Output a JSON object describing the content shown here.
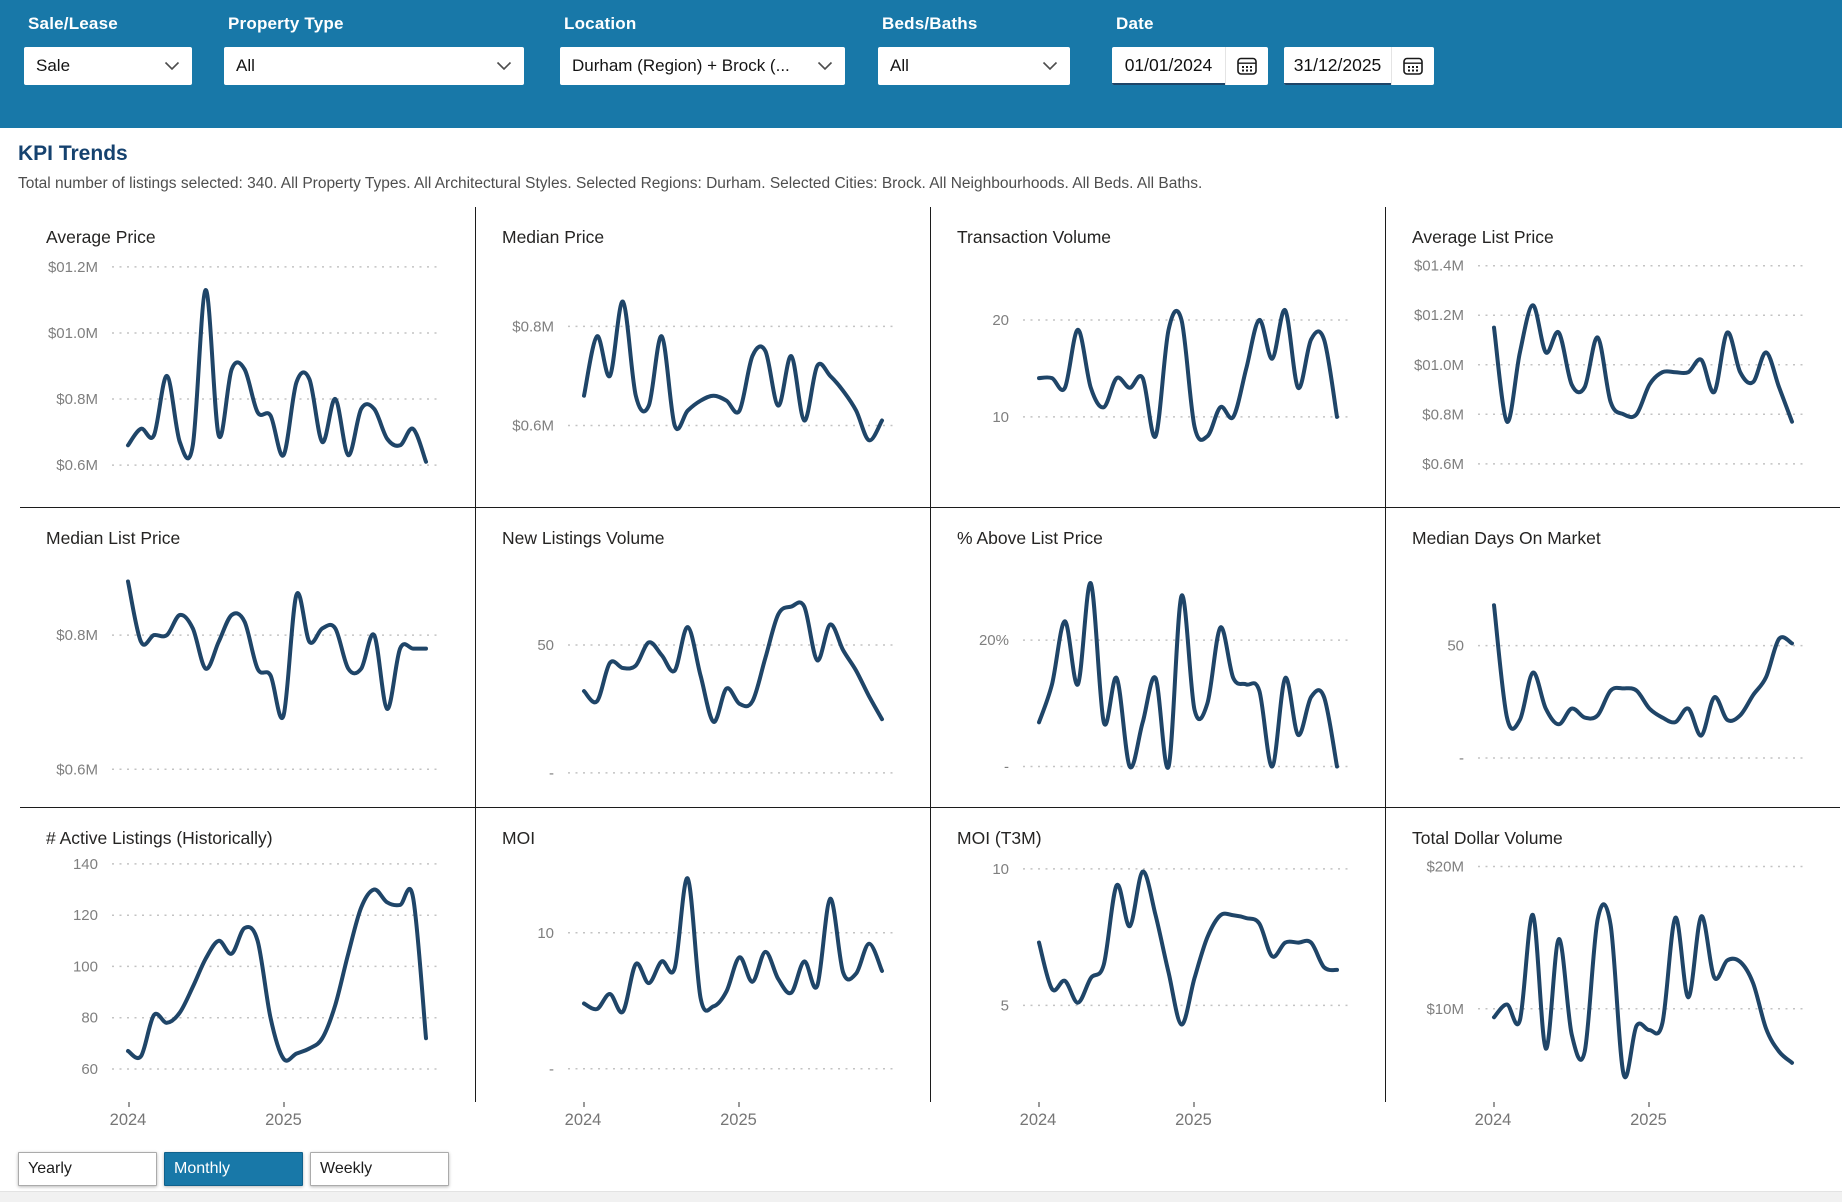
{
  "filters": {
    "sale_lease": {
      "label": "Sale/Lease",
      "value": "Sale"
    },
    "property_type": {
      "label": "Property Type",
      "value": "All"
    },
    "location": {
      "label": "Location",
      "value": "Durham (Region) + Brock (..."
    },
    "beds_baths": {
      "label": "Beds/Baths",
      "value": "All"
    },
    "date": {
      "label": "Date",
      "start": "01/01/2024",
      "end": "31/12/2025"
    }
  },
  "page": {
    "title": "KPI Trends",
    "subtitle": "Total number of listings selected: 340. All Property Types. All Architectural Styles. Selected Regions: Durham. Selected Cities: Brock. All Neighbourhoods. All Beds. All Baths."
  },
  "period_toggle": {
    "options": [
      "Yearly",
      "Monthly",
      "Weekly"
    ],
    "selected": "Monthly"
  },
  "colors": {
    "header_blue": "#1878a8",
    "line": "#1f4568",
    "title_navy": "#15426f"
  },
  "icons": {
    "dropdown": "chevron-down",
    "date": "calendar"
  },
  "chart_data": [
    {
      "slug": "avg-price",
      "title": "Average Price",
      "type": "line",
      "x_range": [
        "2024-01",
        "2025-12"
      ],
      "x_axis_labels": [
        "2024",
        "2025"
      ],
      "grid": "dotted",
      "values": [
        0.66,
        0.71,
        0.69,
        0.87,
        0.67,
        0.66,
        1.13,
        0.69,
        0.89,
        0.89,
        0.76,
        0.75,
        0.63,
        0.85,
        0.86,
        0.67,
        0.8,
        0.63,
        0.77,
        0.77,
        0.68,
        0.66,
        0.71,
        0.61
      ],
      "yticks": [
        {
          "label": "$01.2M",
          "value": 1.2
        },
        {
          "label": "$01.0M",
          "value": 1.0
        },
        {
          "label": "$0.8M",
          "value": 0.8
        },
        {
          "label": "$0.6M",
          "value": 0.6
        }
      ],
      "ylim": [
        0.57,
        1.23
      ]
    },
    {
      "slug": "median-price",
      "title": "Median Price",
      "type": "line",
      "x_range": [
        "2024-01",
        "2025-12"
      ],
      "x_axis_labels": [
        "2024",
        "2025"
      ],
      "grid": "dotted",
      "values": [
        0.66,
        0.78,
        0.7,
        0.85,
        0.66,
        0.64,
        0.78,
        0.6,
        0.63,
        0.65,
        0.66,
        0.65,
        0.63,
        0.74,
        0.75,
        0.64,
        0.74,
        0.61,
        0.72,
        0.7,
        0.67,
        0.63,
        0.57,
        0.61
      ],
      "yticks": [
        {
          "label": "$0.8M",
          "value": 0.8
        },
        {
          "label": "$0.6M",
          "value": 0.6
        }
      ],
      "ylim": [
        0.5,
        0.94
      ]
    },
    {
      "slug": "transaction-volume",
      "title": "Transaction Volume",
      "type": "line",
      "x_range": [
        "2024-01",
        "2025-12"
      ],
      "x_axis_labels": [
        "2024",
        "2025"
      ],
      "grid": "dotted",
      "values": [
        14,
        14,
        13,
        19,
        13,
        11,
        14,
        13,
        14,
        8,
        19,
        20,
        9,
        8,
        11,
        10,
        15,
        20,
        16,
        21,
        13,
        18,
        18,
        10
      ],
      "yticks": [
        {
          "label": "20",
          "value": 20
        },
        {
          "label": "10",
          "value": 10
        }
      ],
      "ylim": [
        4,
        26.5
      ]
    },
    {
      "slug": "avg-list-price",
      "title": "Average List Price",
      "type": "line",
      "x_range": [
        "2024-01",
        "2025-12"
      ],
      "x_axis_labels": [
        "2024",
        "2025"
      ],
      "grid": "dotted",
      "values": [
        1.15,
        0.77,
        1.05,
        1.24,
        1.05,
        1.13,
        0.92,
        0.91,
        1.11,
        0.85,
        0.8,
        0.8,
        0.92,
        0.97,
        0.97,
        0.97,
        1.02,
        0.89,
        1.13,
        0.97,
        0.93,
        1.05,
        0.91,
        0.77
      ],
      "yticks": [
        {
          "label": "$01.4M",
          "value": 1.4
        },
        {
          "label": "$01.2M",
          "value": 1.2
        },
        {
          "label": "$01.0M",
          "value": 1.0
        },
        {
          "label": "$0.8M",
          "value": 0.8
        },
        {
          "label": "$0.6M",
          "value": 0.6
        }
      ],
      "ylim": [
        0.555,
        1.435
      ]
    },
    {
      "slug": "median-list-price",
      "title": "Median List Price",
      "type": "line",
      "x_range": [
        "2024-01",
        "2025-12"
      ],
      "x_axis_labels": [
        "2024",
        "2025"
      ],
      "grid": "dotted",
      "values": [
        0.88,
        0.79,
        0.8,
        0.8,
        0.83,
        0.81,
        0.75,
        0.79,
        0.83,
        0.82,
        0.75,
        0.74,
        0.68,
        0.86,
        0.79,
        0.81,
        0.81,
        0.75,
        0.75,
        0.8,
        0.69,
        0.78,
        0.78,
        0.78
      ],
      "yticks": [
        {
          "label": "$0.8M",
          "value": 0.8
        },
        {
          "label": "$0.6M",
          "value": 0.6
        }
      ],
      "ylim": [
        0.59,
        0.915
      ]
    },
    {
      "slug": "new-listings-volume",
      "title": "New Listings Volume",
      "type": "line",
      "x_range": [
        "2024-01",
        "2025-12"
      ],
      "x_axis_labels": [
        "2024",
        "2025"
      ],
      "grid": "dotted",
      "values": [
        32,
        28,
        43,
        41,
        42,
        51,
        46,
        40,
        57,
        38,
        20,
        33,
        27,
        28,
        45,
        62,
        65,
        65,
        44,
        58,
        48,
        40,
        30,
        21
      ],
      "yticks": [
        {
          "label": "50",
          "value": 50
        },
        {
          "label": "-",
          "value": 0
        }
      ],
      "ylim": [
        -1.2,
        84
      ]
    },
    {
      "slug": "pct-above-list-price",
      "title": "% Above List Price",
      "type": "line",
      "x_range": [
        "2024-01",
        "2025-12"
      ],
      "x_axis_labels": [
        "2024",
        "2025"
      ],
      "grid": "dotted",
      "values": [
        7,
        13,
        23,
        13,
        29,
        7,
        14,
        0,
        7,
        14,
        0,
        27,
        9,
        10,
        22,
        14,
        13,
        12,
        0,
        14,
        5,
        11,
        11,
        0
      ],
      "yticks": [
        {
          "label": "20%",
          "value": 20
        },
        {
          "label": "-",
          "value": 0
        }
      ],
      "ylim": [
        -1.5,
        33
      ]
    },
    {
      "slug": "median-days-on-market",
      "title": "Median Days On Market",
      "type": "line",
      "x_range": [
        "2024-01",
        "2025-12"
      ],
      "x_axis_labels": [
        "2024",
        "2025"
      ],
      "grid": "dotted",
      "values": [
        68,
        18,
        17,
        38,
        22,
        15,
        22,
        18,
        19,
        30,
        31,
        30,
        22,
        18,
        16,
        22,
        10,
        27,
        17,
        19,
        28,
        36,
        53,
        51
      ],
      "yticks": [
        {
          "label": "50",
          "value": 50
        },
        {
          "label": "-",
          "value": 0
        }
      ],
      "ylim": [
        -8,
        89
      ]
    },
    {
      "slug": "active-listings-historically",
      "title": "# Active Listings (Historically)",
      "type": "line",
      "x_range": [
        "2024-01",
        "2025-12"
      ],
      "x_axis_labels": [
        "2024",
        "2025"
      ],
      "grid": "dotted",
      "values": [
        67,
        65,
        81,
        78,
        82,
        92,
        103,
        110,
        105,
        115,
        110,
        80,
        64,
        66,
        68,
        72,
        85,
        105,
        123,
        130,
        125,
        124,
        127,
        72
      ],
      "yticks": [
        {
          "label": "140",
          "value": 140
        },
        {
          "label": "120",
          "value": 120
        },
        {
          "label": "100",
          "value": 100
        },
        {
          "label": "80",
          "value": 80
        },
        {
          "label": "60",
          "value": 60
        }
      ],
      "ylim": [
        63.5,
        142.3
      ]
    },
    {
      "slug": "moi",
      "title": "MOI",
      "type": "line",
      "x_range": [
        "2024-01",
        "2025-12"
      ],
      "x_axis_labels": [
        "2024",
        "2025"
      ],
      "grid": "dotted",
      "values": [
        4.8,
        4.4,
        5.5,
        4.2,
        7.7,
        6.3,
        7.9,
        7.4,
        14,
        5.2,
        4.6,
        5.7,
        8.2,
        6.4,
        8.6,
        6.6,
        5.6,
        7.9,
        6.1,
        12.5,
        7.1,
        7.0,
        9.2,
        7.2
      ],
      "yticks": [
        {
          "label": "10",
          "value": 10
        },
        {
          "label": "-",
          "value": 0
        }
      ],
      "ylim": [
        0.65,
        15.5
      ]
    },
    {
      "slug": "moi-t3m",
      "title": "MOI (T3M)",
      "type": "line",
      "x_range": [
        "2024-01",
        "2025-12"
      ],
      "x_axis_labels": [
        "2024",
        "2025"
      ],
      "grid": "dotted",
      "values": [
        7.3,
        5.6,
        5.9,
        5.1,
        6.0,
        6.5,
        9.4,
        7.9,
        9.9,
        8.3,
        6.2,
        4.3,
        6.0,
        7.5,
        8.3,
        8.3,
        8.2,
        8.0,
        6.8,
        7.3,
        7.3,
        7.3,
        6.4,
        6.3
      ],
      "yticks": [
        {
          "label": "10",
          "value": 10
        },
        {
          "label": "5",
          "value": 5
        }
      ],
      "ylim": [
        3.0,
        10.4
      ]
    },
    {
      "slug": "total-dollar-volume",
      "title": "Total Dollar Volume",
      "type": "line",
      "x_range": [
        "2024-01",
        "2025-12"
      ],
      "x_axis_labels": [
        "2024",
        "2025"
      ],
      "grid": "dotted",
      "values": [
        9.4,
        10.3,
        9.2,
        16.6,
        7.2,
        14.9,
        8.2,
        7.0,
        16.3,
        15.9,
        5.4,
        8.8,
        8.5,
        9.0,
        16.4,
        10.8,
        16.5,
        12.2,
        13.4,
        13.3,
        11.8,
        8.6,
        7.0,
        6.2
      ],
      "yticks": [
        {
          "label": "$20M",
          "value": 20
        },
        {
          "label": "$10M",
          "value": 10
        }
      ],
      "ylim": [
        6.4,
        20.6
      ]
    }
  ]
}
